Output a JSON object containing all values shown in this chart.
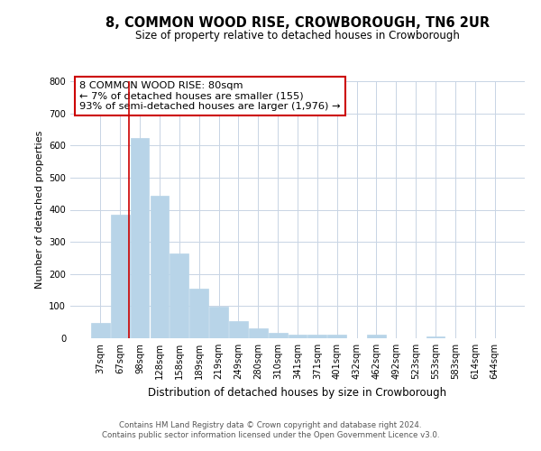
{
  "title": "8, COMMON WOOD RISE, CROWBOROUGH, TN6 2UR",
  "subtitle": "Size of property relative to detached houses in Crowborough",
  "xlabel": "Distribution of detached houses by size in Crowborough",
  "ylabel": "Number of detached properties",
  "bar_labels": [
    "37sqm",
    "67sqm",
    "98sqm",
    "128sqm",
    "158sqm",
    "189sqm",
    "219sqm",
    "249sqm",
    "280sqm",
    "310sqm",
    "341sqm",
    "371sqm",
    "401sqm",
    "432sqm",
    "462sqm",
    "492sqm",
    "523sqm",
    "553sqm",
    "583sqm",
    "614sqm",
    "644sqm"
  ],
  "bar_values": [
    47,
    385,
    622,
    443,
    265,
    155,
    97,
    52,
    30,
    17,
    12,
    12,
    12,
    0,
    12,
    0,
    0,
    5,
    0,
    0,
    0
  ],
  "bar_color": "#b8d4e8",
  "ylim": [
    0,
    800
  ],
  "yticks": [
    0,
    100,
    200,
    300,
    400,
    500,
    600,
    700,
    800
  ],
  "red_line_x": 1.43,
  "annotation_text": "8 COMMON WOOD RISE: 80sqm\n← 7% of detached houses are smaller (155)\n93% of semi-detached houses are larger (1,976) →",
  "annotation_box_color": "#ffffff",
  "annotation_box_edge_color": "#cc0000",
  "footer_line1": "Contains HM Land Registry data © Crown copyright and database right 2024.",
  "footer_line2": "Contains public sector information licensed under the Open Government Licence v3.0.",
  "background_color": "#ffffff",
  "grid_color": "#c8d4e4"
}
